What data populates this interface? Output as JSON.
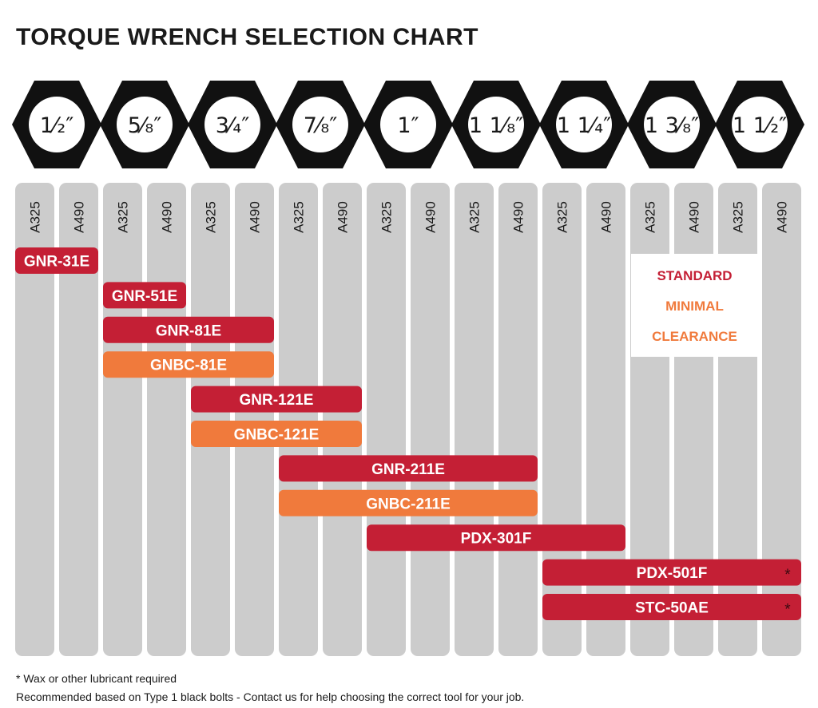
{
  "title": "TORQUE WRENCH SELECTION CHART",
  "colors": {
    "standard": "#c41f35",
    "minimal": "#f07a3c",
    "column": "#cccccc",
    "hex": "#111111",
    "asterisk": "#3a0a10"
  },
  "bolt_sizes": [
    "1⁄₂″",
    "5⁄₈″",
    "3⁄₄″",
    "7⁄₈″",
    "1″",
    "1 1⁄₈″",
    "1 1⁄₄″",
    "1 3⁄₈″",
    "1 1⁄₂″"
  ],
  "bolt_size_values": [
    "1/2\"",
    "5/8\"",
    "3/4\"",
    "7/8\"",
    "1\"",
    "1 1/8\"",
    "1 1/4\"",
    "1 3/8\"",
    "1 1/2\""
  ],
  "grades": [
    "A325",
    "A490"
  ],
  "legend": {
    "standard": "STANDARD",
    "minimal_line1": "MINIMAL",
    "minimal_line2": "CLEARANCE"
  },
  "tools": [
    {
      "name": "GNR-31E",
      "type": "standard",
      "from": "1/2\" A325",
      "to": "1/2\" A490",
      "start_sub": 0,
      "end_sub": 1,
      "asterisk": false
    },
    {
      "name": "GNR-51E",
      "type": "standard",
      "from": "5/8\" A325",
      "to": "5/8\" A490",
      "start_sub": 2,
      "end_sub": 3,
      "asterisk": false
    },
    {
      "name": "GNR-81E",
      "type": "standard",
      "from": "5/8\" A325",
      "to": "3/4\" A490",
      "start_sub": 2,
      "end_sub": 5,
      "asterisk": false
    },
    {
      "name": "GNBC-81E",
      "type": "minimal",
      "from": "5/8\" A325",
      "to": "3/4\" A490",
      "start_sub": 2,
      "end_sub": 5,
      "asterisk": false
    },
    {
      "name": "GNR-121E",
      "type": "standard",
      "from": "3/4\" A325",
      "to": "7/8\" A490",
      "start_sub": 4,
      "end_sub": 7,
      "asterisk": false
    },
    {
      "name": "GNBC-121E",
      "type": "minimal",
      "from": "3/4\" A325",
      "to": "7/8\" A490",
      "start_sub": 4,
      "end_sub": 7,
      "asterisk": false
    },
    {
      "name": "GNR-211E",
      "type": "standard",
      "from": "7/8\" A325",
      "to": "1 1/8\" A490",
      "start_sub": 6,
      "end_sub": 11,
      "asterisk": false
    },
    {
      "name": "GNBC-211E",
      "type": "minimal",
      "from": "7/8\" A325",
      "to": "1 1/8\" A490",
      "start_sub": 6,
      "end_sub": 11,
      "asterisk": false
    },
    {
      "name": "PDX-301F",
      "type": "standard",
      "from": "1\" A325",
      "to": "1 1/4\" A490",
      "start_sub": 8,
      "end_sub": 13,
      "asterisk": false
    },
    {
      "name": "PDX-501F",
      "type": "standard",
      "from": "1 1/4\" A325",
      "to": "1 1/2\" A490",
      "start_sub": 12,
      "end_sub": 17,
      "asterisk": true
    },
    {
      "name": "STC-50AE",
      "type": "standard",
      "from": "1 1/4\" A325",
      "to": "1 1/2\" A490",
      "start_sub": 12,
      "end_sub": 17,
      "asterisk": true
    }
  ],
  "asterisk_symbol": "*",
  "footnotes": {
    "lubricant": "* Wax or other lubricant required",
    "recommendation": "Recommended based on Type 1 black bolts - Contact us for help choosing the correct tool for your job."
  }
}
